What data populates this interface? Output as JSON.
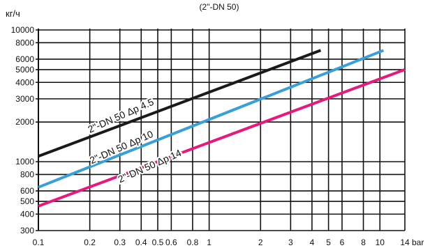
{
  "chart_data": {
    "type": "line",
    "title": "(2\"-DN 50)",
    "xlabel": "",
    "ylabel": "кг/ч",
    "x_scale": "log",
    "y_scale": "log",
    "xlim": [
      0.1,
      14
    ],
    "ylim": [
      300,
      10000
    ],
    "grid": true,
    "legend": "none",
    "x_ticks": [
      0.1,
      0.2,
      0.3,
      0.4,
      0.5,
      0.6,
      0.8,
      1,
      2,
      3,
      4,
      5,
      6,
      8,
      10,
      14
    ],
    "x_tick_labels": [
      "0.1",
      "0.2",
      "0.3",
      "0.4",
      "0.5",
      "0.6",
      "0.8",
      "1",
      "2",
      "3",
      "4",
      "5",
      "6",
      "8",
      "10",
      "14"
    ],
    "x_unit": "bar",
    "y_ticks": [
      300,
      400,
      500,
      600,
      800,
      1000,
      2000,
      3000,
      4000,
      5000,
      6000,
      8000,
      10000
    ],
    "y_tick_labels": [
      "300",
      "400",
      "500",
      "600",
      "800",
      "1000",
      "2000",
      "3000",
      "4000",
      "5000",
      "6000",
      "8000",
      "10000"
    ],
    "series": [
      {
        "name": "",
        "color": "#1a1a1a",
        "x": [
          0.1,
          4.5
        ],
        "y": [
          1100,
          7000
        ]
      },
      {
        "name": "",
        "color": "#3a9fd6",
        "x": [
          0.1,
          10.5
        ],
        "y": [
          640,
          7000
        ]
      },
      {
        "name": "",
        "color": "#e5197e",
        "x": [
          0.1,
          14
        ],
        "y": [
          460,
          5000
        ]
      }
    ],
    "annotations": [
      {
        "text": "2\"-DN 50 Δp 4.5",
        "x": 0.2,
        "y": 1650,
        "angle": -24
      },
      {
        "text": "2\"-DN 50 Δp 10",
        "x": 0.205,
        "y": 960,
        "angle": -24
      },
      {
        "text": "2\"-DN 50 Δp 14",
        "x": 0.3,
        "y": 690,
        "angle": -24
      }
    ]
  }
}
